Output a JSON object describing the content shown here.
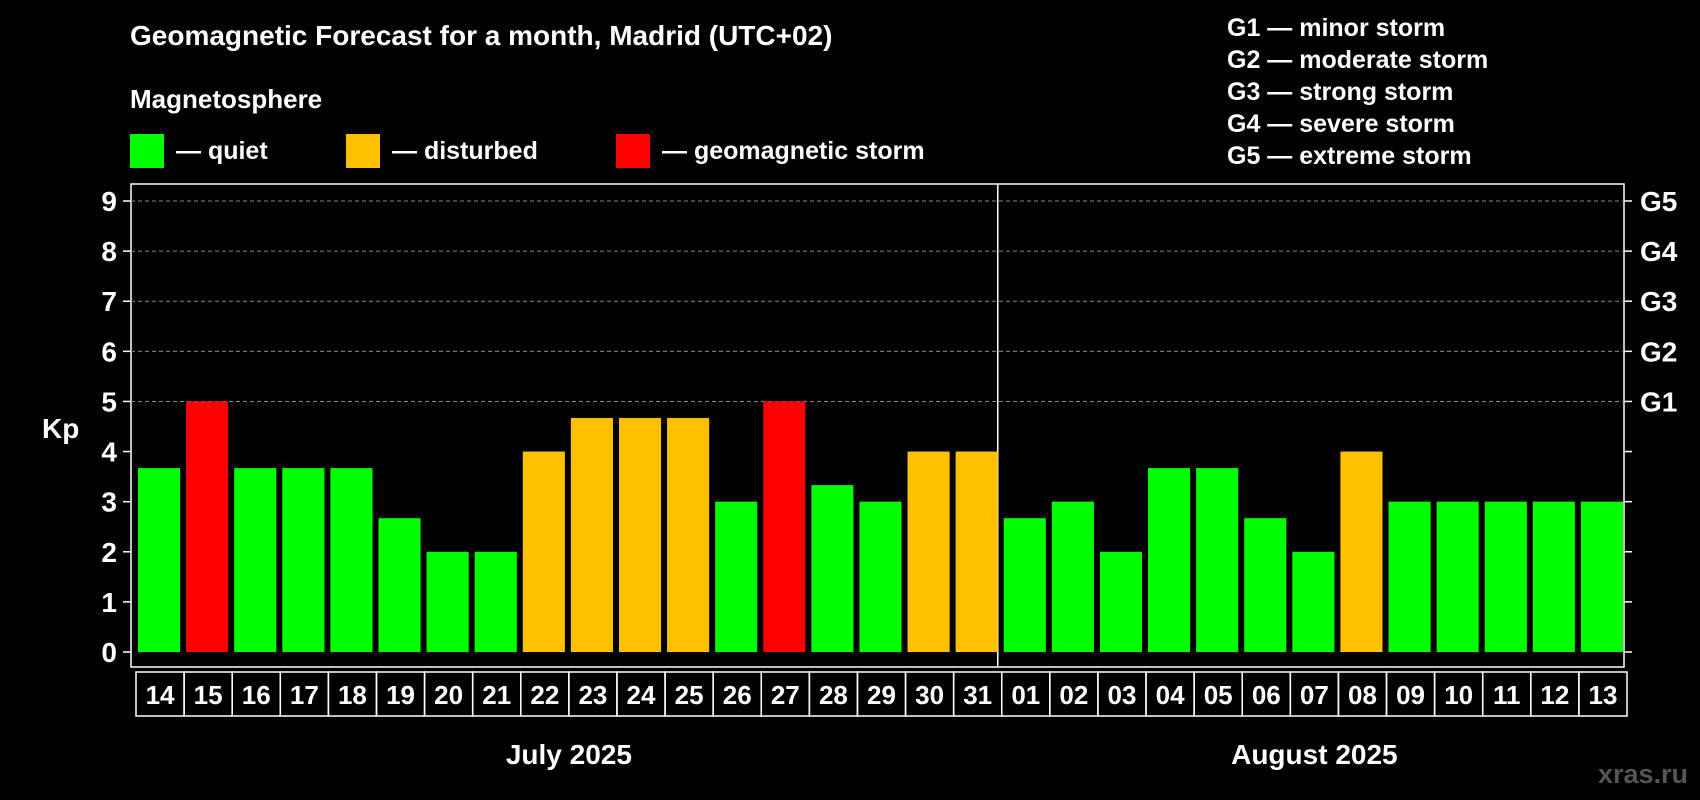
{
  "header": {
    "title": "Geomagnetic Forecast for a month, Madrid (UTC+02)",
    "magnetosphere_label": "Magnetosphere"
  },
  "legend": [
    {
      "label": "— quiet",
      "color": "#00ff00"
    },
    {
      "label": "— disturbed",
      "color": "#ffc000"
    },
    {
      "label": "— geomagnetic storm",
      "color": "#ff0000"
    }
  ],
  "storm_levels": [
    "G1 — minor storm",
    "G2 — moderate storm",
    "G3 — strong storm",
    "G4 — severe storm",
    "G5 — extreme storm"
  ],
  "watermark": "xras.ru",
  "chart_data": {
    "type": "bar",
    "title": "Geomagnetic Forecast for a month, Madrid (UTC+02)",
    "ylabel": "Kp",
    "ylim": [
      0,
      9
    ],
    "yticks": [
      "0",
      "1",
      "2",
      "3",
      "4",
      "5",
      "6",
      "7",
      "8",
      "9"
    ],
    "right_ticks": [
      {
        "kp": 5,
        "label": "G1"
      },
      {
        "kp": 6,
        "label": "G2"
      },
      {
        "kp": 7,
        "label": "G3"
      },
      {
        "kp": 8,
        "label": "G4"
      },
      {
        "kp": 9,
        "label": "G5"
      }
    ],
    "months": [
      {
        "label": "July 2025",
        "days": 18
      },
      {
        "label": "August 2025",
        "days": 13
      }
    ],
    "categories": [
      "14",
      "15",
      "16",
      "17",
      "18",
      "19",
      "20",
      "21",
      "22",
      "23",
      "24",
      "25",
      "26",
      "27",
      "28",
      "29",
      "30",
      "31",
      "01",
      "02",
      "03",
      "04",
      "05",
      "06",
      "07",
      "08",
      "09",
      "10",
      "11",
      "12",
      "13"
    ],
    "values": [
      3.67,
      5,
      3.67,
      3.67,
      3.67,
      2.67,
      2,
      2,
      4,
      4.67,
      4.67,
      4.67,
      3,
      5,
      3.33,
      3,
      4,
      4,
      2.67,
      3,
      2,
      3.67,
      3.67,
      2.67,
      2,
      4,
      3,
      3,
      3,
      3,
      3
    ],
    "status": [
      "quiet",
      "storm",
      "quiet",
      "quiet",
      "quiet",
      "quiet",
      "quiet",
      "quiet",
      "disturbed",
      "disturbed",
      "disturbed",
      "disturbed",
      "quiet",
      "storm",
      "quiet",
      "quiet",
      "disturbed",
      "disturbed",
      "quiet",
      "quiet",
      "quiet",
      "quiet",
      "quiet",
      "quiet",
      "quiet",
      "disturbed",
      "quiet",
      "quiet",
      "quiet",
      "quiet",
      "quiet"
    ],
    "colors": {
      "quiet": "#00ff00",
      "disturbed": "#ffc000",
      "storm": "#ff0000"
    },
    "grid": true
  }
}
